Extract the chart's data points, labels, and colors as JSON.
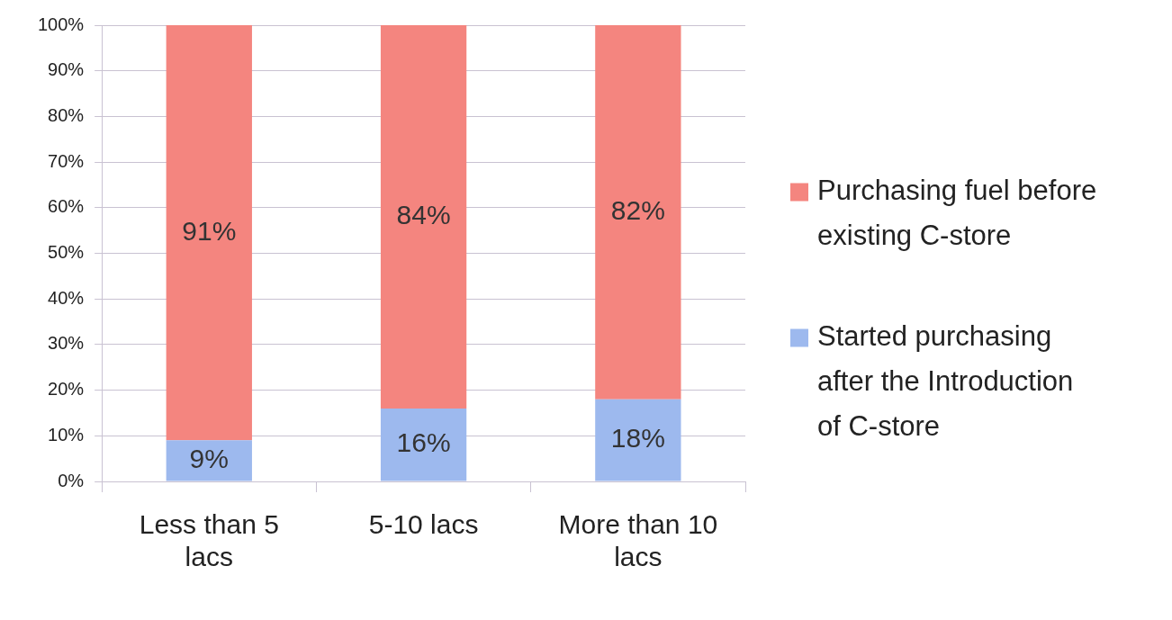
{
  "chart_data": {
    "type": "bar",
    "stacked": true,
    "categories": [
      "Less than 5 lacs",
      "5-10 lacs",
      "More than 10 lacs"
    ],
    "series": [
      {
        "name": "Started purchasing after the Introduction of C-store",
        "color": "#9db9ee",
        "values": [
          9,
          16,
          18
        ],
        "value_labels": [
          "9%",
          "16%",
          "18%"
        ]
      },
      {
        "name": "Purchasing fuel before existing C-store",
        "color": "#f4857f",
        "values": [
          91,
          84,
          82
        ],
        "value_labels": [
          "91%",
          "84%",
          "82%"
        ]
      }
    ],
    "ylim": [
      0,
      100
    ],
    "yticks": [
      {
        "value": 0,
        "label": "0%"
      },
      {
        "value": 10,
        "label": "10%"
      },
      {
        "value": 20,
        "label": "20%"
      },
      {
        "value": 30,
        "label": "30%"
      },
      {
        "value": 40,
        "label": "40%"
      },
      {
        "value": 50,
        "label": "50%"
      },
      {
        "value": 60,
        "label": "60%"
      },
      {
        "value": 70,
        "label": "70%"
      },
      {
        "value": 80,
        "label": "80%"
      },
      {
        "value": 90,
        "label": "90%"
      },
      {
        "value": 100,
        "label": "100%"
      }
    ],
    "grid": "y",
    "legend": "right"
  }
}
